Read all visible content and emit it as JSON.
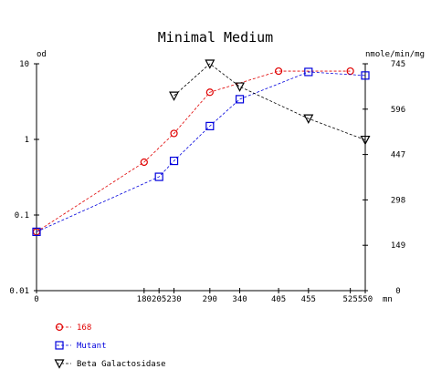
{
  "chart_data": {
    "type": "line",
    "title": "Minimal Medium",
    "left_axis": {
      "label": "od",
      "scale": "log",
      "range": [
        0.01,
        10
      ],
      "ticks": [
        "10",
        "1",
        "0.1",
        "0.01"
      ]
    },
    "right_axis": {
      "label": "nmole/min/mg",
      "scale": "linear",
      "range": [
        0,
        745
      ],
      "ticks": [
        "745",
        "596",
        "447",
        "298",
        "149",
        "0"
      ]
    },
    "x_axis": {
      "label": "mn",
      "range": [
        0,
        550
      ],
      "ticks": [
        "0",
        "180",
        "205",
        "230",
        "290",
        "340",
        "405",
        "455",
        "525",
        "550"
      ]
    },
    "series": [
      {
        "name": "168",
        "axis": "left",
        "marker": "circle",
        "color": "#e00000",
        "points": [
          [
            0,
            0.06
          ],
          [
            180,
            0.5
          ],
          [
            230,
            1.2
          ],
          [
            290,
            4.2
          ],
          [
            405,
            8.0
          ],
          [
            525,
            8.0
          ]
        ]
      },
      {
        "name": "Mutant",
        "axis": "left",
        "marker": "square",
        "color": "#0000dd",
        "points": [
          [
            0,
            0.06
          ],
          [
            205,
            0.32
          ],
          [
            230,
            0.52
          ],
          [
            290,
            1.5
          ],
          [
            340,
            3.4
          ],
          [
            455,
            7.8
          ],
          [
            550,
            7.0
          ]
        ]
      },
      {
        "name": "Beta Galactosidase",
        "axis": "right",
        "marker": "triangle-down",
        "color": "#000000",
        "points": [
          [
            230,
            640
          ],
          [
            290,
            745
          ],
          [
            340,
            670
          ],
          [
            455,
            565
          ],
          [
            550,
            495
          ]
        ]
      }
    ],
    "grid": false,
    "legend_position": "bottom-left"
  }
}
